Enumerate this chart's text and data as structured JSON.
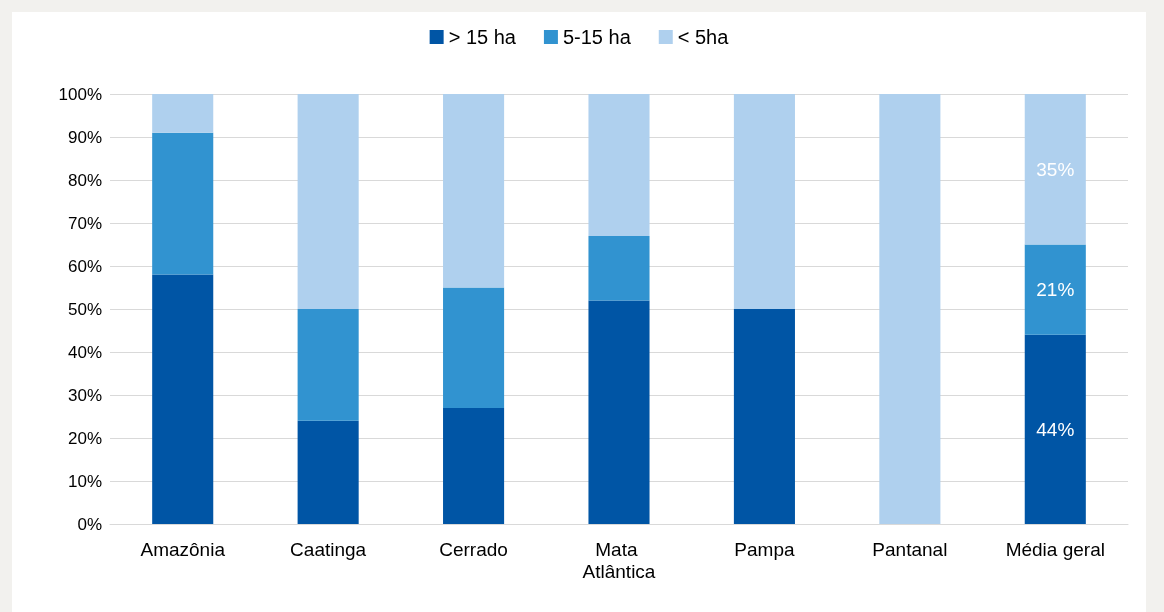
{
  "chart_data": {
    "type": "bar",
    "stacked": true,
    "categories": [
      "Amazônia",
      "Caatinga",
      "Cerrado",
      "Mata Atlântica",
      "Pampa",
      "Pantanal",
      "Média geral"
    ],
    "series": [
      {
        "name": "> 15 ha",
        "color": "#0055a5",
        "values": [
          58,
          24,
          27,
          52,
          50,
          0,
          44
        ],
        "value_labels": [
          null,
          null,
          null,
          null,
          null,
          null,
          "44%"
        ]
      },
      {
        "name": "5-15 ha",
        "color": "#3193d0",
        "values": [
          33,
          26,
          28,
          15,
          0,
          0,
          21
        ],
        "value_labels": [
          null,
          null,
          null,
          null,
          null,
          null,
          "21%"
        ]
      },
      {
        "name": "< 5ha",
        "color": "#afd0ee",
        "values": [
          9,
          50,
          45,
          33,
          50,
          100,
          35
        ],
        "value_labels": [
          null,
          null,
          null,
          null,
          null,
          null,
          "35%"
        ]
      }
    ],
    "ylim": [
      0,
      100
    ],
    "yticks": [
      {
        "value": 0,
        "label": "0%"
      },
      {
        "value": 10,
        "label": "10%"
      },
      {
        "value": 20,
        "label": "20%"
      },
      {
        "value": 30,
        "label": "30%"
      },
      {
        "value": 40,
        "label": "40%"
      },
      {
        "value": 50,
        "label": "50%"
      },
      {
        "value": 60,
        "label": "60%"
      },
      {
        "value": 70,
        "label": "70%"
      },
      {
        "value": 80,
        "label": "80%"
      },
      {
        "value": 90,
        "label": "90%"
      },
      {
        "value": 100,
        "label": "100%"
      }
    ],
    "grid": "y",
    "legend": "top"
  }
}
